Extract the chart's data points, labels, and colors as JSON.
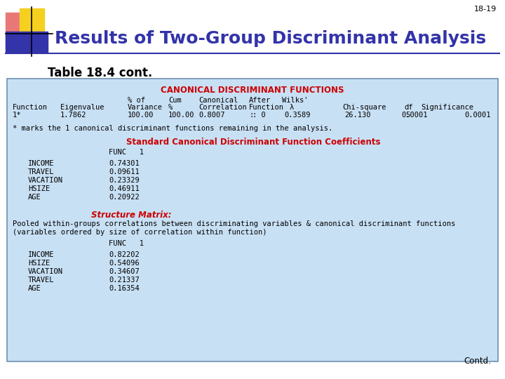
{
  "page_num": "18-19",
  "title": "Results of Two-Group Discriminant Analysis",
  "subtitle": "Table 18.4 cont.",
  "bg_color": "#FFFFFF",
  "box_bg_color": "#C8E0F4",
  "box_border_color": "#7090B0",
  "canonical_header": "CANONICAL DISCRIMINANT FUNCTIONS",
  "canonical_header_color": "#CC0000",
  "footnote": "* marks the 1 canonical discriminant functions remaining in the analysis.",
  "std_coef_title": "Standard Canonical Discriminant Function Coefficients",
  "std_coef_title_color": "#CC0000",
  "std_coef_func_label": "FUNC   1",
  "std_coef_vars": [
    "INCOME",
    "TRAVEL",
    "VACATION",
    "HSIZE",
    "AGE"
  ],
  "std_coef_vals": [
    "0.74301",
    "0.09611",
    "0.23329",
    "0.46911",
    "0.20922"
  ],
  "struct_title": "Structure Matrix:",
  "struct_title_color": "#CC0000",
  "struct_desc1": "Pooled within-groups correlations between discriminating variables & canonical discriminant functions",
  "struct_desc2": "(variables ordered by size of correlation within function)",
  "struct_func_label": "FUNC   1",
  "struct_vars": [
    "INCOME",
    "HSIZE",
    "VACATION",
    "TRAVEL",
    "AGE"
  ],
  "struct_vals": [
    "0.82202",
    "0.54096",
    "0.34607",
    "0.21337",
    "0.16354"
  ],
  "contd": "Contd.",
  "mono_font": "monospace",
  "title_color": "#3333AA",
  "pink_color": "#E87878",
  "yellow_color": "#F5D020",
  "blue_color": "#3333AA"
}
